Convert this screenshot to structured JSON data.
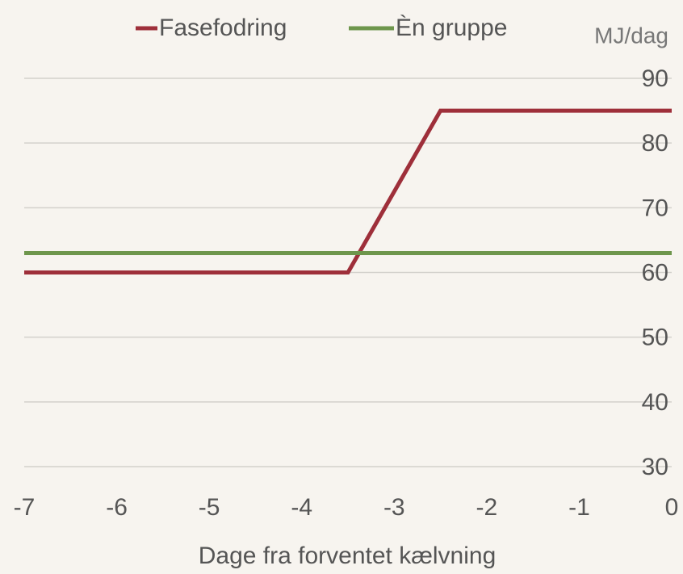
{
  "chart_data": {
    "type": "line",
    "y_label": "MJ/dag",
    "x_label": "Dage fra forventet kælvning",
    "series": [
      {
        "name": "Fasefodring",
        "color": "#9e2f3a",
        "x": [
          -7,
          -3.5,
          -2.5,
          0
        ],
        "values": [
          60,
          60,
          85,
          85
        ]
      },
      {
        "name": "Èn gruppe",
        "color": "#6e964c",
        "x": [
          -7,
          0
        ],
        "values": [
          63,
          63
        ]
      }
    ],
    "xlim": [
      -7,
      0
    ],
    "xticks": [
      -7,
      -6,
      -5,
      -4,
      -3,
      -2,
      -1,
      0
    ],
    "ylim": [
      30,
      90
    ],
    "yticks": [
      30,
      40,
      50,
      60,
      70,
      80,
      90
    ],
    "grid": true,
    "legend": "top"
  }
}
